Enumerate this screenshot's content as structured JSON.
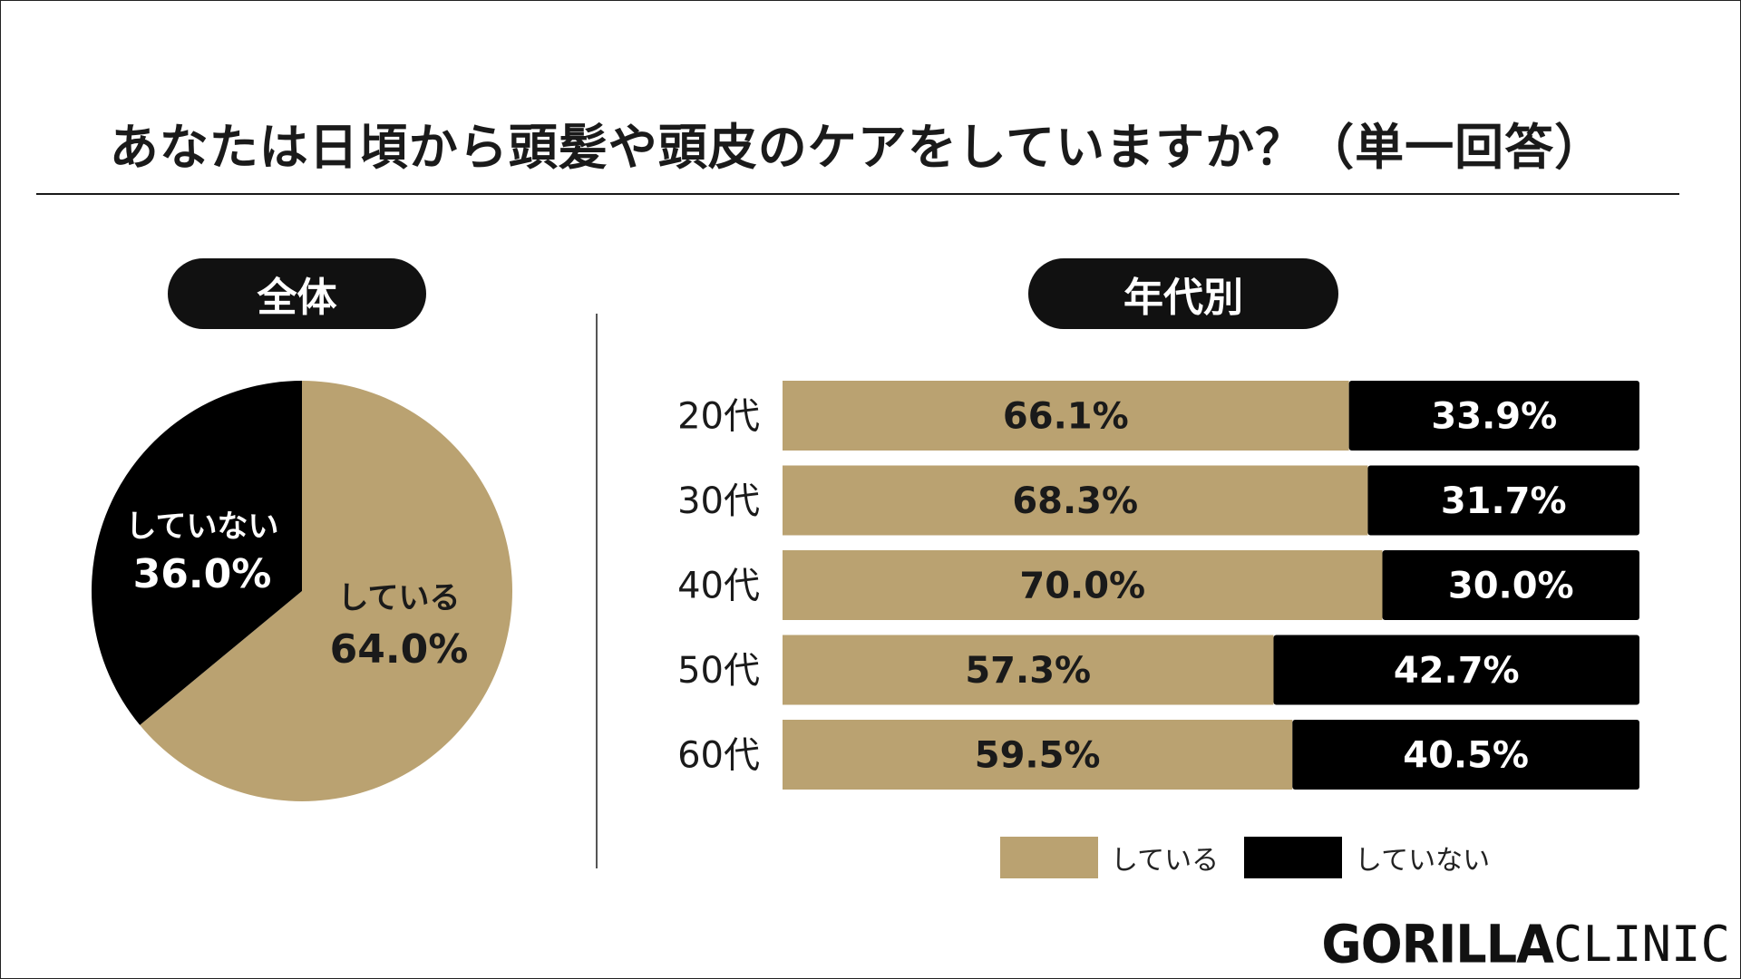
{
  "title": "あなたは日頃から頭髪や頭皮のケアをしていますか？（単一回答）",
  "sections": {
    "overall": "全体",
    "by_age": "年代別"
  },
  "colors": {
    "doing": "#BAA271",
    "not_doing": "#000000"
  },
  "legend": {
    "doing": "している",
    "not_doing": "していない"
  },
  "logo": {
    "bold": "GORILLA",
    "light": "CLINIC"
  },
  "chart_data": [
    {
      "type": "pie",
      "title": "全体",
      "categories": [
        "している",
        "していない"
      ],
      "values": [
        64.0,
        36.0
      ],
      "labels": [
        "64.0%",
        "36.0%"
      ],
      "start": "12 o'clock, clockwise"
    },
    {
      "type": "bar",
      "orientation": "horizontal",
      "stacked": true,
      "title": "年代別",
      "categories": [
        "20代",
        "30代",
        "40代",
        "50代",
        "60代"
      ],
      "series": [
        {
          "name": "している",
          "values": [
            66.1,
            68.3,
            70.0,
            57.3,
            59.5
          ]
        },
        {
          "name": "していない",
          "values": [
            33.9,
            31.7,
            30.0,
            42.7,
            40.5
          ]
        }
      ],
      "xlim": [
        0,
        100
      ],
      "legend": "bottom-center"
    }
  ]
}
